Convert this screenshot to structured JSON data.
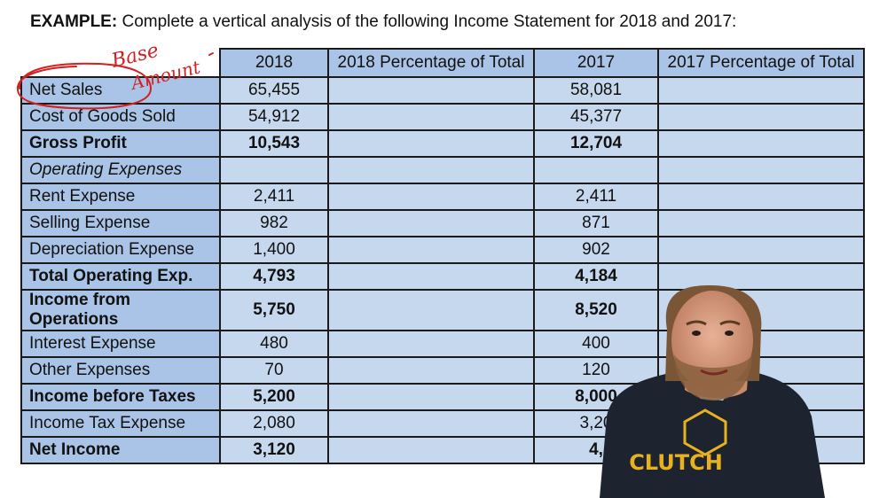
{
  "heading": {
    "prefix": "EXAMPLE:",
    "text": "Complete a vertical analysis of the following Income Statement for 2018 and 2017:"
  },
  "table": {
    "columns": [
      "2018",
      "2018 Percentage of Total",
      "2017",
      "2017 Percentage of Total"
    ],
    "rows": [
      {
        "label": "Net Sales",
        "v2018": "65,455",
        "p2018": "",
        "v2017": "58,081",
        "p2017": "",
        "style": "normal"
      },
      {
        "label": "Cost of Goods Sold",
        "v2018": "54,912",
        "p2018": "",
        "v2017": "45,377",
        "p2017": "",
        "style": "normal"
      },
      {
        "label": "Gross Profit",
        "v2018": "10,543",
        "p2018": "",
        "v2017": "12,704",
        "p2017": "",
        "style": "bold"
      },
      {
        "label": "Operating Expenses",
        "v2018": "",
        "p2018": "",
        "v2017": "",
        "p2017": "",
        "style": "italic"
      },
      {
        "label": "Rent Expense",
        "v2018": "2,411",
        "p2018": "",
        "v2017": "2,411",
        "p2017": "",
        "style": "normal"
      },
      {
        "label": "Selling Expense",
        "v2018": "982",
        "p2018": "",
        "v2017": "871",
        "p2017": "",
        "style": "normal"
      },
      {
        "label": "Depreciation Expense",
        "v2018": "1,400",
        "p2018": "",
        "v2017": "902",
        "p2017": "",
        "style": "normal"
      },
      {
        "label": "Total Operating Exp.",
        "v2018": "4,793",
        "p2018": "",
        "v2017": "4,184",
        "p2017": "",
        "style": "bold"
      },
      {
        "label": "Income from Operations",
        "v2018": "5,750",
        "p2018": "",
        "v2017": "8,520",
        "p2017": "",
        "style": "bold"
      },
      {
        "label": "Interest Expense",
        "v2018": "480",
        "p2018": "",
        "v2017": "400",
        "p2017": "",
        "style": "normal"
      },
      {
        "label": "Other Expenses",
        "v2018": "70",
        "p2018": "",
        "v2017": "120",
        "p2017": "",
        "style": "normal"
      },
      {
        "label": "Income before Taxes",
        "v2018": "5,200",
        "p2018": "",
        "v2017": "8,000",
        "p2017": "",
        "style": "bold"
      },
      {
        "label": "Income Tax Expense",
        "v2018": "2,080",
        "p2018": "",
        "v2017": "3,20",
        "p2017": "",
        "style": "normal"
      },
      {
        "label": "Net Income",
        "v2018": "3,120",
        "p2018": "",
        "v2017": "4,",
        "p2017": "",
        "style": "bold"
      }
    ]
  },
  "annotation": {
    "handwriting": [
      "Base",
      "Amount"
    ],
    "color": "#d42020"
  },
  "presenter": {
    "shirt_text": "CLUTCH",
    "shirt_color": "#1d2430",
    "logo_color": "#e8b21f"
  }
}
